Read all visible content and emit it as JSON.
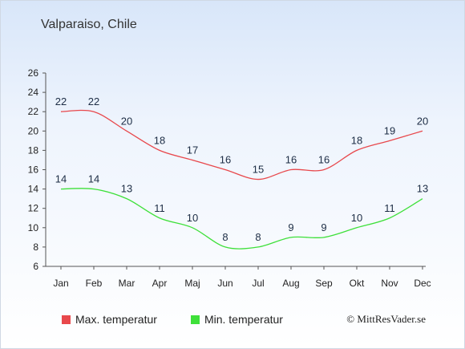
{
  "place": "Valparaiso, Chile",
  "credit": "© MittResVader.se",
  "colors": {
    "max": "#e8484c",
    "min": "#3ee03a",
    "axis": "#555555"
  },
  "chart_data": {
    "type": "line",
    "categories": [
      "Jan",
      "Feb",
      "Mar",
      "Apr",
      "Maj",
      "Jun",
      "Jul",
      "Aug",
      "Sep",
      "Okt",
      "Nov",
      "Dec"
    ],
    "ylim": [
      6,
      26
    ],
    "yticks": [
      6,
      8,
      10,
      12,
      14,
      16,
      18,
      20,
      22,
      24,
      26
    ],
    "series": [
      {
        "name": "Max. temperatur",
        "values": [
          22,
          22,
          20,
          18,
          17,
          16,
          15,
          16,
          16,
          18,
          19,
          20
        ]
      },
      {
        "name": "Min. temperatur",
        "values": [
          14,
          14,
          13,
          11,
          10,
          8,
          8,
          9,
          9,
          10,
          11,
          13
        ]
      }
    ],
    "legend_position": "bottom"
  }
}
